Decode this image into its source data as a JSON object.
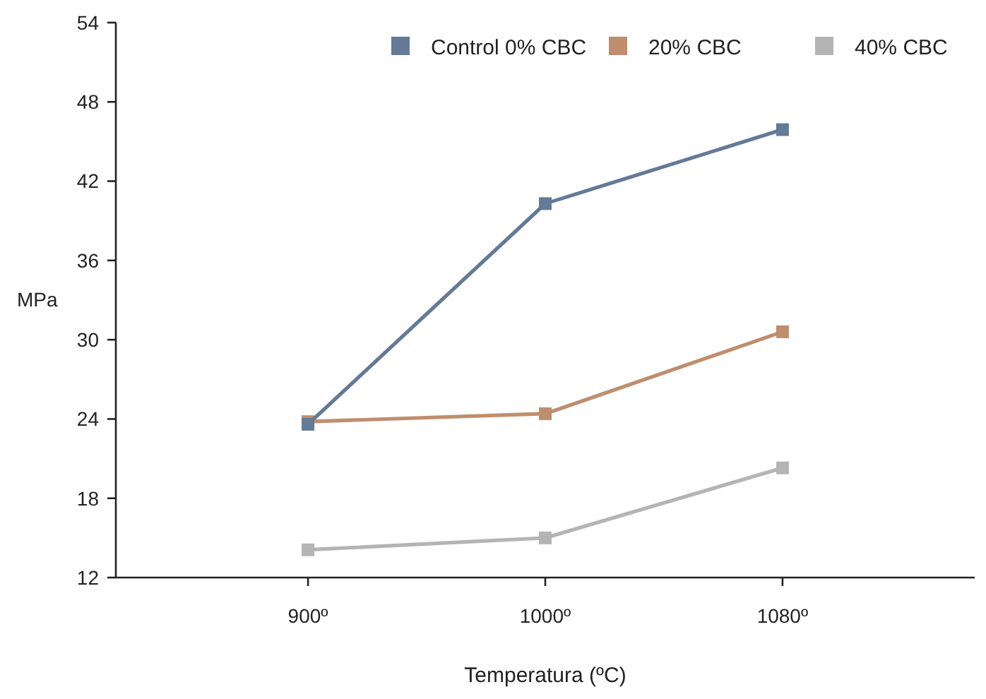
{
  "chart_data": {
    "type": "line",
    "xlabel": "Temperatura (ºC)",
    "ylabel": "MPa",
    "categories": [
      "900º",
      "1000º",
      "1080º"
    ],
    "series": [
      {
        "name": "Control 0% CBC",
        "color": "#647a96",
        "values": [
          23.6,
          40.3,
          45.9
        ]
      },
      {
        "name": "20% CBC",
        "color": "#bf8e6e",
        "values": [
          23.8,
          24.4,
          30.6
        ]
      },
      {
        "name": "40% CBC",
        "color": "#b4b4b4",
        "values": [
          14.1,
          15.0,
          20.3
        ]
      }
    ],
    "ylim": [
      12,
      54
    ],
    "yticks": [
      12,
      18,
      24,
      30,
      36,
      42,
      48,
      54
    ],
    "grid": false,
    "legend": "top right",
    "marker": "square",
    "line_style": "solid"
  }
}
